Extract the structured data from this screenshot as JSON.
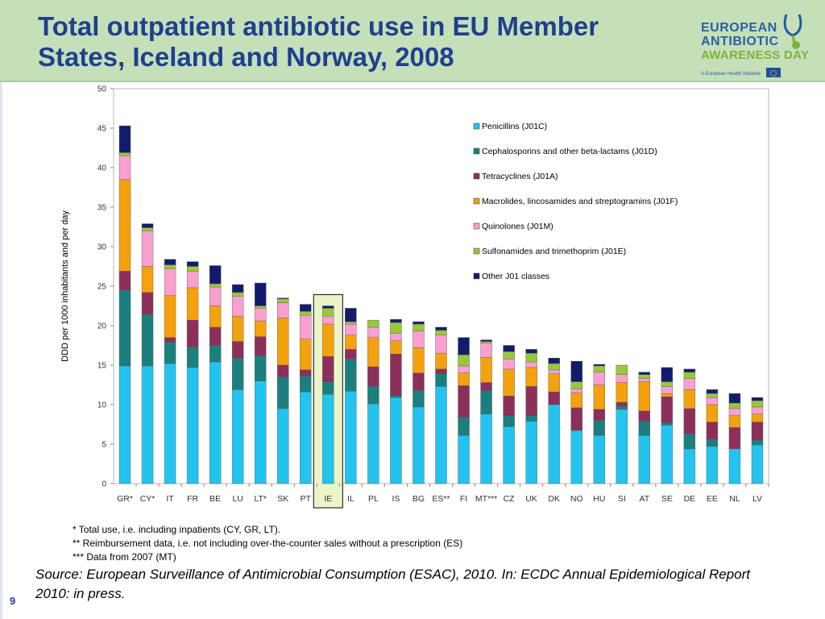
{
  "slide": {
    "title": "Total outpatient antibiotic use in EU Member States, Iceland and Norway, 2008",
    "page_number": "9",
    "logo": {
      "line1": "EUROPEAN",
      "line2": "ANTIBIOTIC",
      "line3": "AWARENESS DAY",
      "tagline": "A European Health Initiative"
    },
    "footnotes": [
      "* Total use, i.e. including inpatients (CY, GR, LT).",
      "** Reimbursement data, i.e. not including over-the-counter sales without a prescription (ES)",
      "*** Data from 2007 (MT)"
    ],
    "source": "Source: European Surveillance of Antimicrobial Consumption (ESAC), 2010. In: ECDC Annual Epidemiological Report 2010: in press."
  },
  "chart_data": {
    "type": "bar",
    "stacked": true,
    "ylabel": "DDD per 1000 inhabitants and per day",
    "ylim": [
      0,
      50
    ],
    "yticks": [
      0,
      5,
      10,
      15,
      20,
      25,
      30,
      35,
      40,
      45,
      50
    ],
    "legend_position": "top-right",
    "highlighted_category": "IE",
    "categories": [
      "GR*",
      "CY*",
      "IT",
      "FR",
      "BE",
      "LU",
      "LT*",
      "SK",
      "PT",
      "IE",
      "IL",
      "PL",
      "IS",
      "BG",
      "ES**",
      "FI",
      "MT***",
      "CZ",
      "UK",
      "DK",
      "NO",
      "HU",
      "SI",
      "AT",
      "SE",
      "DE",
      "EE",
      "NL",
      "LV"
    ],
    "series": [
      {
        "name": "Penicillins (J01C)",
        "color": "#22c4ef",
        "values": [
          14.9,
          14.9,
          15.2,
          14.7,
          15.4,
          11.9,
          13.0,
          9.5,
          11.6,
          11.3,
          11.7,
          10.1,
          10.9,
          9.7,
          12.3,
          6.1,
          8.8,
          7.2,
          7.9,
          10.0,
          6.7,
          6.1,
          9.4,
          6.1,
          7.4,
          4.4,
          4.7,
          4.4,
          4.9
        ]
      },
      {
        "name": "Cephalosporins and other beta-lactams (J01D)",
        "color": "#1c7f7f",
        "values": [
          9.6,
          6.5,
          2.7,
          2.6,
          2.1,
          4.0,
          3.2,
          4.0,
          2.0,
          1.6,
          4.1,
          2.2,
          0.2,
          2.1,
          1.6,
          2.3,
          3.0,
          1.4,
          0.7,
          0.0,
          0.1,
          1.9,
          0.4,
          1.8,
          0.3,
          1.9,
          0.9,
          0.0,
          0.6
        ]
      },
      {
        "name": "Tetracyclines (J01A)",
        "color": "#8c2f5a",
        "values": [
          2.4,
          2.8,
          0.6,
          3.4,
          2.3,
          2.1,
          2.4,
          1.5,
          0.8,
          3.2,
          1.2,
          2.5,
          5.3,
          2.2,
          0.6,
          4.0,
          1.0,
          2.5,
          3.7,
          1.6,
          2.8,
          1.4,
          0.5,
          1.3,
          3.3,
          3.2,
          2.2,
          2.7,
          2.3
        ]
      },
      {
        "name": "Macrolides, lincosamides and streptogramins (J01F)",
        "color": "#f4a10e",
        "values": [
          11.6,
          3.3,
          5.3,
          4.1,
          2.7,
          3.2,
          2.0,
          6.0,
          3.9,
          4.1,
          1.8,
          3.7,
          1.7,
          3.2,
          2.0,
          1.6,
          3.2,
          3.4,
          2.4,
          2.3,
          1.9,
          3.1,
          2.5,
          3.7,
          0.4,
          2.4,
          2.2,
          1.5,
          1.0
        ]
      },
      {
        "name": "Quinolones (J01M)",
        "color": "#f9a0cf",
        "values": [
          3.0,
          4.5,
          3.4,
          2.1,
          2.4,
          2.5,
          1.6,
          1.9,
          3.0,
          1.0,
          1.4,
          1.3,
          0.9,
          2.1,
          2.3,
          0.9,
          1.8,
          1.3,
          0.7,
          0.5,
          0.5,
          1.6,
          1.0,
          0.4,
          0.9,
          1.4,
          0.9,
          0.9,
          0.9
        ]
      },
      {
        "name": "Sulfonamides and trimethoprim (J01E)",
        "color": "#98c83a",
        "values": [
          0.4,
          0.4,
          0.5,
          0.6,
          0.4,
          0.5,
          0.3,
          0.5,
          0.5,
          1.0,
          0.3,
          0.9,
          1.4,
          0.9,
          0.6,
          1.4,
          0.2,
          0.9,
          1.1,
          0.8,
          0.9,
          0.8,
          1.2,
          0.5,
          0.6,
          0.8,
          0.5,
          0.7,
          0.8
        ]
      },
      {
        "name": "Other J01 classes",
        "color": "#121c6c",
        "values": [
          3.4,
          0.5,
          0.7,
          0.6,
          2.3,
          1.0,
          2.9,
          0.1,
          0.9,
          0.3,
          1.7,
          0.0,
          0.4,
          0.3,
          0.4,
          2.2,
          0.2,
          0.8,
          0.5,
          0.7,
          2.6,
          0.2,
          0.0,
          0.3,
          1.8,
          0.4,
          0.5,
          1.2,
          0.4
        ]
      }
    ]
  }
}
